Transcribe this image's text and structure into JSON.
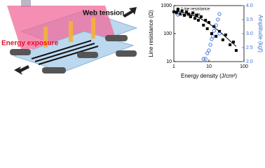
{
  "diagram": {
    "labels": [
      "Web tension",
      "Energy exposure"
    ]
  },
  "chart_data": {
    "type": "scatter",
    "xlabel": "Energy density (J/cm²)",
    "ylabel": "Line resistance (Ω)",
    "y2label": "Amplitude (kgf)",
    "xlim": [
      1,
      100
    ],
    "xticks": [
      1,
      10,
      100
    ],
    "xlog": true,
    "ylim": [
      10,
      1000
    ],
    "yticks": [
      10,
      100,
      1000
    ],
    "ylog": true,
    "y2lim": [
      2,
      4
    ],
    "y2ticks": [
      {
        "value": 2,
        "label": "2.0"
      },
      {
        "value": 2.5,
        "label": "2.5"
      },
      {
        "value": 3,
        "label": "3.0"
      },
      {
        "value": 3.5,
        "label": "3.5"
      },
      {
        "value": 4,
        "label": "4.0"
      }
    ],
    "y2color": "#3a6fd8",
    "legend": "upper left",
    "series": [
      {
        "name": "Line resistance",
        "color": "#000000",
        "marker": "square",
        "x": [
          1.0,
          1.2,
          1.3,
          1.5,
          1.7,
          2,
          2.3,
          2.6,
          3,
          3.5,
          4,
          4.5,
          5,
          6,
          7,
          8,
          9,
          10,
          12,
          14,
          16,
          20,
          25,
          30,
          40,
          50,
          60
        ],
        "values": [
          600,
          550,
          700,
          500,
          650,
          450,
          600,
          500,
          400,
          550,
          350,
          450,
          300,
          400,
          200,
          300,
          150,
          250,
          100,
          180,
          80,
          120,
          60,
          90,
          40,
          50,
          25
        ]
      },
      {
        "color": "#000000",
        "marker": "line",
        "x": [
          1,
          2,
          5,
          10,
          20,
          40,
          60
        ],
        "values": [
          650,
          560,
          380,
          230,
          120,
          55,
          35
        ]
      },
      {
        "name": "Amplitude",
        "color": "#3a6fd8",
        "marker": "circle",
        "axis": "y2",
        "x": [
          7,
          8,
          9,
          10,
          11,
          12,
          13,
          14,
          16,
          18,
          20,
          20
        ],
        "values": [
          2.1,
          2.1,
          2.3,
          2.4,
          2.6,
          2.8,
          2.9,
          3.1,
          3.3,
          3.5,
          3.7,
          3.0
        ]
      }
    ]
  }
}
